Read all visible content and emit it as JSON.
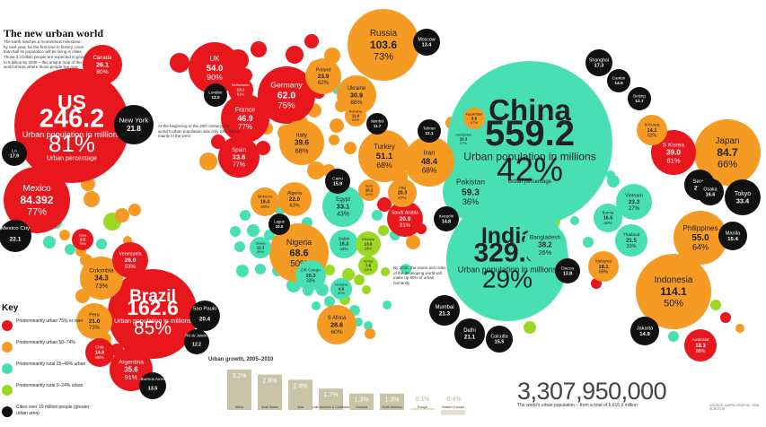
{
  "title": "The new urban world",
  "intro": "The earth reaches a momentous milestone: by next year, for the first time in history, more than half its population will be living in cities. Those 3.3 billion people are expected to grow to 5 billion by 2030 – this unique map of the world shows where those people live now",
  "note_1900": "At the beginning of the 20th century, the world's urban population was only 220 million, mainly in the west",
  "note_2030": "By 2030, the towns and cities of the developing world will make up 80% of urban humanity",
  "big_labels": {
    "units": "Urban population in millions",
    "percent": "Urban percentage"
  },
  "legend": {
    "title": "Key",
    "items": [
      {
        "label": "Predominantly urban 75% or over",
        "color": "#e8171e"
      },
      {
        "label": "Predominantly urban 50–74%",
        "color": "#f59a23"
      },
      {
        "label": "Predominantly rural 25–49% urban",
        "color": "#48e0b2"
      },
      {
        "label": "Predominantly rural 0–24% urban",
        "color": "#9ad823"
      },
      {
        "label": "Cities over 10 million people (greater urban area)",
        "color": "#111111"
      }
    ]
  },
  "total": {
    "value": "3,307,950,000",
    "caption": "The world's urban population – from a total of 6,615.9 million"
  },
  "source": "SOURCE: UNFPA   GRAPHIC: PAUL SCRUTON",
  "chart_data": [
    {
      "type": "bubble-map",
      "colors": {
        "u75": "#e8171e",
        "u50": "#f59a23",
        "r25": "#48e0b2",
        "r0": "#9ad823",
        "city": "#111111"
      },
      "countries": [
        {
          "name": "China",
          "value": 559.2,
          "pct": 42,
          "class": "r25"
        },
        {
          "name": "India",
          "value": 329.3,
          "pct": 29,
          "class": "r25"
        },
        {
          "name": "US",
          "value": 246.2,
          "pct": 81,
          "class": "u75"
        },
        {
          "name": "Brazil",
          "value": 162.6,
          "pct": 85,
          "class": "u75"
        },
        {
          "name": "Indonesia",
          "value": 114.1,
          "pct": 50,
          "class": "u50"
        },
        {
          "name": "Russia",
          "value": 103.6,
          "pct": 73,
          "class": "u50"
        },
        {
          "name": "Japan",
          "value": 84.7,
          "pct": 66,
          "class": "u50"
        },
        {
          "name": "Mexico",
          "value": 84.392,
          "pct": 77,
          "class": "u75"
        },
        {
          "name": "Nigeria",
          "value": 68.6,
          "pct": 50,
          "class": "u50"
        },
        {
          "name": "Germany",
          "value": 62.0,
          "pct": 75,
          "class": "u75"
        },
        {
          "name": "Pakistan",
          "value": 59.3,
          "pct": 36,
          "class": "r25"
        },
        {
          "name": "Philippines",
          "value": 55.0,
          "pct": 64,
          "class": "u50"
        },
        {
          "name": "UK",
          "value": 54.0,
          "pct": 90,
          "class": "u75"
        },
        {
          "name": "Turkey",
          "value": 51.1,
          "pct": 68,
          "class": "u50"
        },
        {
          "name": "Iran",
          "value": 48.4,
          "pct": 68,
          "class": "u50"
        },
        {
          "name": "France",
          "value": 46.9,
          "pct": 77,
          "class": "u75"
        },
        {
          "name": "Italy",
          "value": 39.6,
          "pct": 68,
          "class": "u50"
        },
        {
          "name": "S Korea",
          "value": 39.0,
          "pct": 81,
          "class": "u75"
        },
        {
          "name": "Bangladesh",
          "value": 38.2,
          "pct": 26,
          "class": "r25"
        },
        {
          "name": "Colombia",
          "value": 34.3,
          "pct": 73,
          "class": "u50"
        },
        {
          "name": "Argentina",
          "value": 35.6,
          "pct": 91,
          "class": "u75"
        },
        {
          "name": "Spain",
          "value": 33.6,
          "pct": 77,
          "class": "u75"
        },
        {
          "name": "Egypt",
          "value": 33.1,
          "pct": 43,
          "class": "r25"
        },
        {
          "name": "Ukraine",
          "value": 30.9,
          "pct": 68,
          "class": "u50"
        },
        {
          "name": "S Africa",
          "value": 28.6,
          "pct": 60,
          "class": "u50"
        },
        {
          "name": "Canada",
          "value": 26.1,
          "pct": 80,
          "class": "u75"
        },
        {
          "name": "Saudi Arabia",
          "value": 20.9,
          "pct": 81,
          "class": "u75"
        },
        {
          "name": "Peru",
          "value": 21.0,
          "pct": 73,
          "class": "u50"
        },
        {
          "name": "Venezuela",
          "value": 26.0,
          "pct": 93,
          "class": "u75"
        },
        {
          "name": "Poland",
          "value": 23.9,
          "pct": 62,
          "class": "u50"
        },
        {
          "name": "Vietnam",
          "value": 23.3,
          "pct": 27,
          "class": "r25"
        },
        {
          "name": "Algeria",
          "value": 22.0,
          "pct": 63,
          "class": "u50"
        },
        {
          "name": "Thailand",
          "value": 21.5,
          "pct": 33,
          "class": "r25"
        },
        {
          "name": "Australia",
          "value": 18.3,
          "pct": 88,
          "class": "u75"
        },
        {
          "name": "N Korea",
          "value": 14.1,
          "pct": 62,
          "class": "u50"
        },
        {
          "name": "DR Congo",
          "value": 20.3,
          "pct": 33,
          "class": "r25"
        },
        {
          "name": "Sudan",
          "value": 16.3,
          "pct": 43,
          "class": "r25"
        },
        {
          "name": "Morocco",
          "value": 19.4,
          "pct": 60,
          "class": "u50"
        },
        {
          "name": "Iraq",
          "value": 20.3,
          "pct": 67,
          "class": "u50"
        },
        {
          "name": "Burma",
          "value": 16.5,
          "pct": 32,
          "class": "r25"
        },
        {
          "name": "Malaysia",
          "value": 18.1,
          "pct": 69,
          "class": "u50"
        },
        {
          "name": "Chile",
          "value": 14.6,
          "pct": 88,
          "class": "u75"
        },
        {
          "name": "Ethiopia",
          "value": 13.0,
          "pct": 16,
          "class": "r0"
        },
        {
          "name": "Kenya",
          "value": 7.6,
          "pct": 21,
          "class": "r0"
        },
        {
          "name": "Uzbekistan",
          "value": 10.3,
          "pct": 37,
          "class": "r25"
        },
        {
          "name": "Kazakhstan",
          "value": 8.6,
          "pct": 57,
          "class": "u50"
        },
        {
          "name": "Ghana",
          "value": 11.3,
          "pct": 49,
          "class": "r25"
        },
        {
          "name": "Tanzania",
          "value": 9.9,
          "pct": 25,
          "class": "r25"
        },
        {
          "name": "Syria",
          "value": 10.2,
          "pct": 51,
          "class": "u50"
        },
        {
          "name": "Romania",
          "value": 11.6,
          "pct": 54,
          "class": "u50"
        },
        {
          "name": "Netherlands",
          "value": 13.1,
          "pct": 81,
          "class": "u75"
        },
        {
          "name": "Cuba",
          "value": 8.5,
          "pct": 76,
          "class": "u75"
        }
      ],
      "cities": [
        {
          "name": "New York",
          "value": 21.8
        },
        {
          "name": "Mexico City",
          "value": 22.1
        },
        {
          "name": "LA",
          "value": 17.9
        },
        {
          "name": "Sao Paulo",
          "value": 20.4
        },
        {
          "name": "Rio de Janeiro",
          "value": 12.2
        },
        {
          "name": "Buenos Aires",
          "value": 13.5
        },
        {
          "name": "London",
          "value": 12.0
        },
        {
          "name": "Moscow",
          "value": 13.4
        },
        {
          "name": "Istanbul",
          "value": 11.7
        },
        {
          "name": "Cairo",
          "value": 15.9
        },
        {
          "name": "Lagos",
          "value": 10.0
        },
        {
          "name": "Tehran",
          "value": 12.1
        },
        {
          "name": "Karachi",
          "value": 14.8
        },
        {
          "name": "Mumbai",
          "value": 21.3
        },
        {
          "name": "Delhi",
          "value": 21.1
        },
        {
          "name": "Calcutta",
          "value": 15.5
        },
        {
          "name": "Dacca",
          "value": 13.8
        },
        {
          "name": "Shanghai",
          "value": 17.3
        },
        {
          "name": "Canton",
          "value": 14.5
        },
        {
          "name": "Beijing",
          "value": 12.7
        },
        {
          "name": "Seoul",
          "value": 23.2
        },
        {
          "name": "Osaka",
          "value": 16.6
        },
        {
          "name": "Tokyo",
          "value": 33.4
        },
        {
          "name": "Manila",
          "value": 15.4
        },
        {
          "name": "Jakarta",
          "value": 14.9
        }
      ]
    },
    {
      "type": "bar",
      "title": "Urban growth, 2005–2010",
      "categories": [
        "Africa",
        "Arab States",
        "Asia",
        "Latin America & Caribbean",
        "Oceania",
        "North America",
        "Europe",
        "Eastern Europe"
      ],
      "values": [
        3.2,
        2.8,
        2.4,
        1.7,
        1.3,
        1.3,
        0.1,
        -0.4
      ],
      "labels": [
        "3.2%",
        "2.8%",
        "2.4%",
        "1.7%",
        "1.3%",
        "1.3%",
        "0.1%",
        "-0.4%"
      ]
    }
  ]
}
